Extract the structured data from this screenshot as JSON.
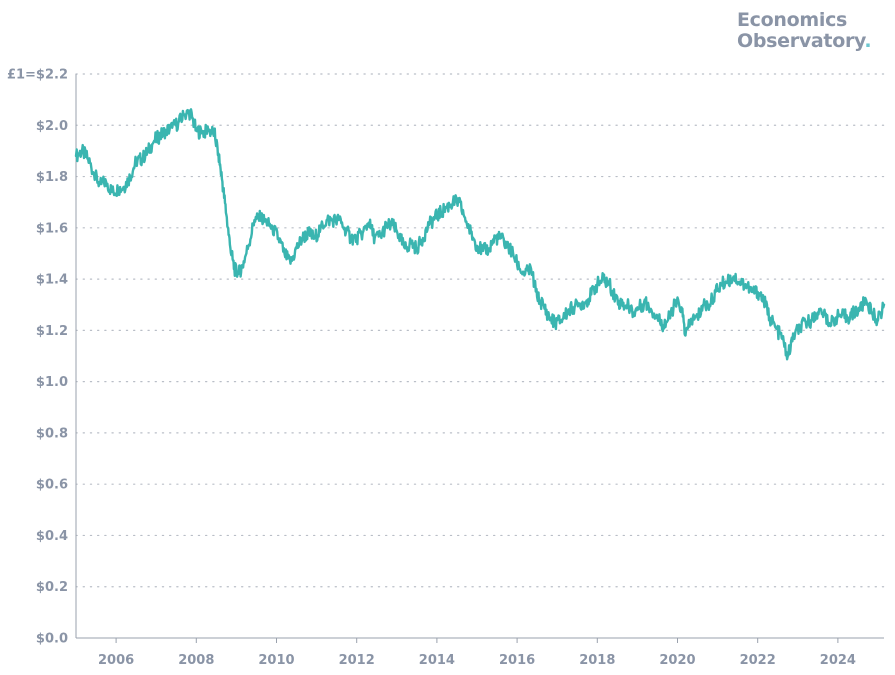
{
  "brand": {
    "line1": "Economics",
    "line2": "Observatory",
    "dot": "."
  },
  "chart_data": {
    "type": "line",
    "y_ticks": [
      {
        "value": 0.0,
        "label": "$0.0"
      },
      {
        "value": 0.2,
        "label": "$0.2"
      },
      {
        "value": 0.4,
        "label": "$0.4"
      },
      {
        "value": 0.6,
        "label": "$0.6"
      },
      {
        "value": 0.8,
        "label": "$0.8"
      },
      {
        "value": 1.0,
        "label": "$1.0"
      },
      {
        "value": 1.2,
        "label": "$1.2"
      },
      {
        "value": 1.4,
        "label": "$1.4"
      },
      {
        "value": 1.6,
        "label": "$1.6"
      },
      {
        "value": 1.8,
        "label": "$1.8"
      },
      {
        "value": 2.0,
        "label": "$2.0"
      },
      {
        "value": 2.2,
        "label": "£1=$2.2"
      }
    ],
    "x_ticks": [
      "2006",
      "2008",
      "2010",
      "2012",
      "2014",
      "2016",
      "2018",
      "2020",
      "2022",
      "2024"
    ],
    "xlim": [
      2005.0,
      2025.15
    ],
    "ylim": [
      0,
      2.2
    ],
    "grid": "horizontal-dotted",
    "line_color": "#3ab5b0",
    "grid_color": "#b9bec7",
    "axis_color": "#9aa1ad",
    "series": [
      {
        "points": [
          [
            2005.0,
            1.88
          ],
          [
            2005.15,
            1.9
          ],
          [
            2005.3,
            1.87
          ],
          [
            2005.45,
            1.81
          ],
          [
            2005.6,
            1.77
          ],
          [
            2005.75,
            1.78
          ],
          [
            2005.9,
            1.74
          ],
          [
            2006.05,
            1.75
          ],
          [
            2006.2,
            1.76
          ],
          [
            2006.35,
            1.8
          ],
          [
            2006.5,
            1.86
          ],
          [
            2006.65,
            1.87
          ],
          [
            2006.8,
            1.9
          ],
          [
            2006.95,
            1.94
          ],
          [
            2007.1,
            1.96
          ],
          [
            2007.25,
            1.98
          ],
          [
            2007.4,
            1.99
          ],
          [
            2007.55,
            2.01
          ],
          [
            2007.7,
            2.04
          ],
          [
            2007.85,
            2.05
          ],
          [
            2008.0,
            1.98
          ],
          [
            2008.15,
            1.97
          ],
          [
            2008.3,
            1.98
          ],
          [
            2008.45,
            1.97
          ],
          [
            2008.55,
            1.89
          ],
          [
            2008.65,
            1.78
          ],
          [
            2008.75,
            1.65
          ],
          [
            2008.85,
            1.52
          ],
          [
            2008.95,
            1.44
          ],
          [
            2009.05,
            1.42
          ],
          [
            2009.15,
            1.45
          ],
          [
            2009.3,
            1.53
          ],
          [
            2009.45,
            1.63
          ],
          [
            2009.6,
            1.64
          ],
          [
            2009.75,
            1.62
          ],
          [
            2009.9,
            1.6
          ],
          [
            2010.05,
            1.56
          ],
          [
            2010.2,
            1.5
          ],
          [
            2010.35,
            1.46
          ],
          [
            2010.5,
            1.52
          ],
          [
            2010.65,
            1.56
          ],
          [
            2010.8,
            1.58
          ],
          [
            2010.95,
            1.56
          ],
          [
            2011.1,
            1.6
          ],
          [
            2011.25,
            1.63
          ],
          [
            2011.4,
            1.63
          ],
          [
            2011.55,
            1.63
          ],
          [
            2011.7,
            1.6
          ],
          [
            2011.85,
            1.56
          ],
          [
            2012.0,
            1.56
          ],
          [
            2012.15,
            1.58
          ],
          [
            2012.3,
            1.62
          ],
          [
            2012.45,
            1.56
          ],
          [
            2012.6,
            1.57
          ],
          [
            2012.75,
            1.61
          ],
          [
            2012.9,
            1.61
          ],
          [
            2013.05,
            1.57
          ],
          [
            2013.2,
            1.52
          ],
          [
            2013.35,
            1.54
          ],
          [
            2013.5,
            1.52
          ],
          [
            2013.65,
            1.56
          ],
          [
            2013.8,
            1.61
          ],
          [
            2013.95,
            1.64
          ],
          [
            2014.1,
            1.66
          ],
          [
            2014.25,
            1.68
          ],
          [
            2014.4,
            1.7
          ],
          [
            2014.55,
            1.7
          ],
          [
            2014.7,
            1.64
          ],
          [
            2014.85,
            1.58
          ],
          [
            2015.0,
            1.53
          ],
          [
            2015.15,
            1.51
          ],
          [
            2015.3,
            1.52
          ],
          [
            2015.45,
            1.56
          ],
          [
            2015.6,
            1.56
          ],
          [
            2015.75,
            1.53
          ],
          [
            2015.9,
            1.5
          ],
          [
            2016.05,
            1.44
          ],
          [
            2016.2,
            1.42
          ],
          [
            2016.35,
            1.44
          ],
          [
            2016.5,
            1.33
          ],
          [
            2016.65,
            1.3
          ],
          [
            2016.8,
            1.25
          ],
          [
            2016.95,
            1.23
          ],
          [
            2017.1,
            1.24
          ],
          [
            2017.25,
            1.27
          ],
          [
            2017.4,
            1.29
          ],
          [
            2017.55,
            1.3
          ],
          [
            2017.7,
            1.31
          ],
          [
            2017.85,
            1.34
          ],
          [
            2018.0,
            1.38
          ],
          [
            2018.15,
            1.4
          ],
          [
            2018.3,
            1.38
          ],
          [
            2018.45,
            1.33
          ],
          [
            2018.6,
            1.3
          ],
          [
            2018.75,
            1.3
          ],
          [
            2018.9,
            1.27
          ],
          [
            2019.05,
            1.29
          ],
          [
            2019.2,
            1.31
          ],
          [
            2019.35,
            1.28
          ],
          [
            2019.5,
            1.25
          ],
          [
            2019.65,
            1.22
          ],
          [
            2019.8,
            1.25
          ],
          [
            2019.95,
            1.31
          ],
          [
            2020.1,
            1.29
          ],
          [
            2020.2,
            1.18
          ],
          [
            2020.35,
            1.24
          ],
          [
            2020.5,
            1.25
          ],
          [
            2020.65,
            1.3
          ],
          [
            2020.8,
            1.3
          ],
          [
            2020.95,
            1.35
          ],
          [
            2021.1,
            1.38
          ],
          [
            2021.25,
            1.39
          ],
          [
            2021.4,
            1.41
          ],
          [
            2021.55,
            1.39
          ],
          [
            2021.7,
            1.38
          ],
          [
            2021.85,
            1.35
          ],
          [
            2022.0,
            1.35
          ],
          [
            2022.15,
            1.32
          ],
          [
            2022.3,
            1.25
          ],
          [
            2022.45,
            1.21
          ],
          [
            2022.6,
            1.17
          ],
          [
            2022.75,
            1.1
          ],
          [
            2022.9,
            1.18
          ],
          [
            2023.05,
            1.21
          ],
          [
            2023.2,
            1.23
          ],
          [
            2023.35,
            1.24
          ],
          [
            2023.5,
            1.27
          ],
          [
            2023.65,
            1.27
          ],
          [
            2023.8,
            1.22
          ],
          [
            2023.95,
            1.25
          ],
          [
            2024.1,
            1.26
          ],
          [
            2024.25,
            1.25
          ],
          [
            2024.4,
            1.27
          ],
          [
            2024.55,
            1.28
          ],
          [
            2024.7,
            1.32
          ],
          [
            2024.85,
            1.27
          ],
          [
            2025.0,
            1.24
          ],
          [
            2025.15,
            1.3
          ]
        ]
      }
    ]
  }
}
